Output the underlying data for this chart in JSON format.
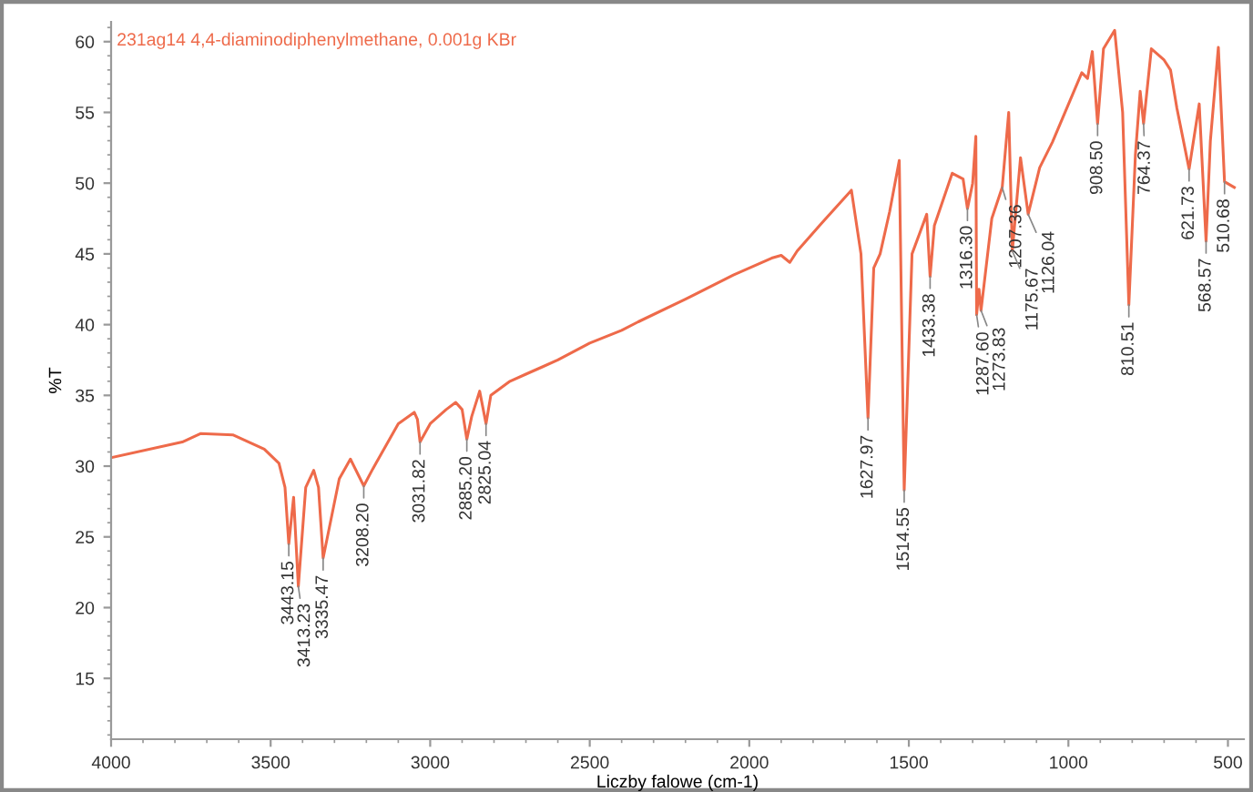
{
  "chart_data": {
    "type": "line",
    "title": "231ag14 4,4-diaminodiphenylmethane, 0.001g KBr",
    "xlabel": "Liczby falowe (cm-1)",
    "ylabel": "%T",
    "xlim": [
      4000,
      450
    ],
    "ylim": [
      10.7,
      61.4
    ],
    "xticks": [
      4000,
      3500,
      3000,
      2500,
      2000,
      1500,
      1000,
      500
    ],
    "yticks": [
      15,
      20,
      25,
      30,
      35,
      40,
      45,
      50,
      55,
      60
    ],
    "grid": false,
    "legend": false,
    "marker": "none",
    "line_style": "solid",
    "series": [
      {
        "color": "#ee6a4a",
        "x": [
          4000,
          3777,
          3720,
          3617,
          3520,
          3474,
          3455,
          3443.15,
          3428,
          3413.23,
          3390,
          3365,
          3350,
          3335.47,
          3285,
          3250,
          3208.2,
          3180,
          3100,
          3050,
          3040,
          3031.82,
          3000,
          2950,
          2920,
          2900,
          2885.2,
          2870,
          2845,
          2825.04,
          2810,
          2750,
          2700,
          2650,
          2600,
          2500,
          2400,
          2348,
          2200,
          2050,
          1930,
          1900,
          1873,
          1850,
          1776,
          1680,
          1650,
          1627.97,
          1610,
          1590,
          1560,
          1530,
          1514.55,
          1490,
          1444,
          1433.38,
          1420,
          1364,
          1330,
          1316.3,
          1300,
          1290,
          1287.6,
          1280,
          1273.83,
          1240,
          1207.36,
          1187,
          1175.67,
          1150,
          1126.04,
          1090,
          1050,
          958,
          940,
          925,
          908.5,
          890,
          855,
          830,
          810.51,
          790,
          775,
          764.37,
          740,
          700,
          680,
          660,
          621.73,
          590,
          568.57,
          555,
          530,
          510.68,
          480
        ],
        "values": [
          30.6,
          31.7,
          32.3,
          32.2,
          31.2,
          30.2,
          28.5,
          24.5,
          27.8,
          21.5,
          28.5,
          29.7,
          28.5,
          23.5,
          29.1,
          30.5,
          28.6,
          29.8,
          33.0,
          33.8,
          33.3,
          31.7,
          33.0,
          34.0,
          34.5,
          34.0,
          31.9,
          33.5,
          35.3,
          33.0,
          35.0,
          36.0,
          36.5,
          37.0,
          37.5,
          38.7,
          39.6,
          40.2,
          41.8,
          43.5,
          44.7,
          44.9,
          44.4,
          45.2,
          47.1,
          49.5,
          45.0,
          33.4,
          44.0,
          45.0,
          48.0,
          51.6,
          28.3,
          45.0,
          47.8,
          43.4,
          47.0,
          50.7,
          50.3,
          48.2,
          50.0,
          53.3,
          40.7,
          42.5,
          41.0,
          47.5,
          49.7,
          55.0,
          45.2,
          51.8,
          47.8,
          51.1,
          52.9,
          57.8,
          57.4,
          59.3,
          54.2,
          59.5,
          60.8,
          55.0,
          41.4,
          52.0,
          56.5,
          54.2,
          59.5,
          58.7,
          58.0,
          55.3,
          51.0,
          55.6,
          45.9,
          53.0,
          59.6,
          50.1,
          49.7
        ]
      }
    ],
    "annotations": [
      {
        "text": "3443.15",
        "x": 3443.15,
        "y": 24.5
      },
      {
        "text": "3413.23",
        "x": 3413.23,
        "y": 21.5
      },
      {
        "text": "3335.47",
        "x": 3335.47,
        "y": 23.5
      },
      {
        "text": "3208.20",
        "x": 3208.2,
        "y": 28.6
      },
      {
        "text": "3031.82",
        "x": 3031.82,
        "y": 31.7
      },
      {
        "text": "2885.20",
        "x": 2885.2,
        "y": 31.9
      },
      {
        "text": "2825.04",
        "x": 2825.04,
        "y": 33.0
      },
      {
        "text": "1627.97",
        "x": 1627.97,
        "y": 33.4
      },
      {
        "text": "1514.55",
        "x": 1514.55,
        "y": 28.3
      },
      {
        "text": "1433.38",
        "x": 1433.38,
        "y": 43.4
      },
      {
        "text": "1316.30",
        "x": 1316.3,
        "y": 48.2
      },
      {
        "text": "1287.60",
        "x": 1287.6,
        "y": 40.7
      },
      {
        "text": "1273.83",
        "x": 1273.83,
        "y": 41.0
      },
      {
        "text": "1207.36",
        "x": 1207.36,
        "y": 49.7
      },
      {
        "text": "1175.67",
        "x": 1175.67,
        "y": 45.2
      },
      {
        "text": "1126.04",
        "x": 1126.04,
        "y": 47.8
      },
      {
        "text": "908.50",
        "x": 908.5,
        "y": 54.2
      },
      {
        "text": "810.51",
        "x": 810.51,
        "y": 41.4
      },
      {
        "text": "764.37",
        "x": 764.37,
        "y": 54.2
      },
      {
        "text": "621.73",
        "x": 621.73,
        "y": 51.0
      },
      {
        "text": "568.57",
        "x": 568.57,
        "y": 45.9
      },
      {
        "text": "510.68",
        "x": 510.68,
        "y": 50.1
      }
    ]
  }
}
